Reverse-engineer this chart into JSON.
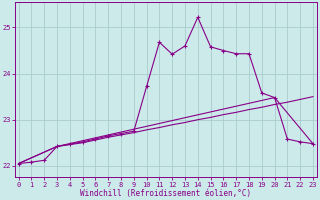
{
  "xlabel": "Windchill (Refroidissement éolien,°C)",
  "background_color": "#cceaea",
  "grid_color": "#aacccc",
  "line_color": "#880088",
  "x_ticks": [
    0,
    1,
    2,
    3,
    4,
    5,
    6,
    7,
    8,
    9,
    10,
    11,
    12,
    13,
    14,
    15,
    16,
    17,
    18,
    19,
    20,
    21,
    22,
    23
  ],
  "y_ticks": [
    22,
    23,
    24,
    25
  ],
  "ylim": [
    21.75,
    25.55
  ],
  "xlim": [
    -0.3,
    23.3
  ],
  "series1_x": [
    0,
    1,
    2,
    3,
    4,
    5,
    6,
    7,
    8,
    9,
    10,
    11,
    12,
    13,
    14,
    15,
    16,
    17,
    18,
    19,
    20,
    21,
    22,
    23
  ],
  "series1_y": [
    22.05,
    22.08,
    22.12,
    22.42,
    22.47,
    22.52,
    22.58,
    22.65,
    22.7,
    22.75,
    23.72,
    24.68,
    24.42,
    24.6,
    25.22,
    24.58,
    24.5,
    24.43,
    24.43,
    23.58,
    23.48,
    22.58,
    22.52,
    22.48
  ],
  "series2_x": [
    0,
    3,
    4,
    5,
    6,
    7,
    8,
    9,
    10,
    11,
    12,
    13,
    14,
    15,
    16,
    17,
    18,
    19,
    20,
    21,
    22,
    23
  ],
  "series2_y": [
    22.05,
    22.42,
    22.46,
    22.5,
    22.56,
    22.62,
    22.67,
    22.72,
    22.78,
    22.83,
    22.89,
    22.94,
    23.0,
    23.05,
    23.11,
    23.16,
    23.22,
    23.27,
    23.33,
    23.38,
    23.44,
    23.5
  ],
  "series3_x": [
    0,
    3,
    20,
    23
  ],
  "series3_y": [
    22.05,
    22.42,
    23.48,
    22.48
  ]
}
